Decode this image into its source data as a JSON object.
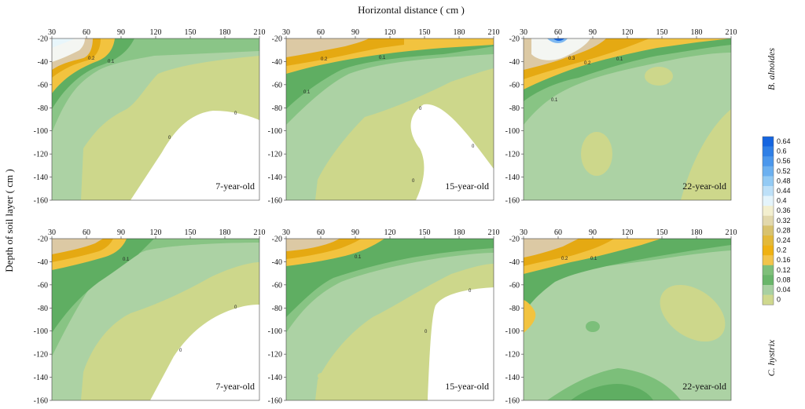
{
  "figure": {
    "x_axis_title": "Horizontal distance ( cm )",
    "y_axis_title": "Depth of soil layer ( cm )",
    "species": [
      "B. alnoides",
      "C. hystrix"
    ]
  },
  "chart_data": {
    "type": "heatmap",
    "subtype": "filled-contour",
    "x_ticks": [
      30,
      60,
      90,
      120,
      150,
      180,
      210
    ],
    "y_ticks": [
      -20,
      -40,
      -60,
      -80,
      -100,
      -120,
      -140,
      -160
    ],
    "xlim": [
      30,
      210
    ],
    "ylim": [
      -160,
      -20
    ],
    "colorbar_ticks": [
      "0.64",
      "0.6",
      "0.56",
      "0.52",
      "0.48",
      "0.44",
      "0.4",
      "0.36",
      "0.32",
      "0.28",
      "0.24",
      "0.2",
      "0.16",
      "0.12",
      "0.08",
      "0.04",
      "0"
    ],
    "colorbar_colors": [
      "#1565e0",
      "#2f7fe6",
      "#4b97ec",
      "#6cb0f0",
      "#93caf4",
      "#bde0f8",
      "#e4f4fb",
      "#f3efcf",
      "#e2d8ac",
      "#d8c26e",
      "#e3b93a",
      "#efb113",
      "#f2c44b",
      "#7fbf7a",
      "#69b56a",
      "#a8d0a2",
      "#cfd88e"
    ],
    "panels": [
      {
        "species": "B. alnoides",
        "label": "7-year-old",
        "contour_labels": [
          {
            "x": 75,
            "y": -31,
            "value": "0.2"
          },
          {
            "x": 88,
            "y": -39,
            "value": "0.1"
          },
          {
            "x": 142,
            "y": -104,
            "value": "0"
          },
          {
            "x": 192,
            "y": -84,
            "value": "0"
          }
        ]
      },
      {
        "species": "B. alnoides",
        "label": "15-year-old",
        "contour_labels": [
          {
            "x": 65,
            "y": -35,
            "value": "0.2"
          },
          {
            "x": 103,
            "y": -33,
            "value": "0.1"
          },
          {
            "x": 42,
            "y": -68,
            "value": "0.1"
          },
          {
            "x": 156,
            "y": -78,
            "value": "0"
          },
          {
            "x": 200,
            "y": -113,
            "value": "0"
          },
          {
            "x": 155,
            "y": -144,
            "value": "0"
          }
        ]
      },
      {
        "species": "B. alnoides",
        "label": "22-year-old",
        "contour_labels": [
          {
            "x": 80,
            "y": -33,
            "value": "0.3"
          },
          {
            "x": 90,
            "y": -39,
            "value": "0.2"
          },
          {
            "x": 118,
            "y": -35,
            "value": "0.1"
          },
          {
            "x": 68,
            "y": -73,
            "value": "0.1"
          }
        ]
      },
      {
        "species": "C. hystrix",
        "label": "7-year-old",
        "contour_labels": [
          {
            "x": 103,
            "y": -37,
            "value": "0.1"
          },
          {
            "x": 145,
            "y": -115,
            "value": "0"
          },
          {
            "x": 192,
            "y": -79,
            "value": "0"
          }
        ]
      },
      {
        "species": "C. hystrix",
        "label": "15-year-old",
        "contour_labels": [
          {
            "x": 90,
            "y": -34,
            "value": "0.1"
          },
          {
            "x": 197,
            "y": -64,
            "value": "0"
          },
          {
            "x": 157,
            "y": -101,
            "value": "0"
          }
        ]
      },
      {
        "species": "C. hystrix",
        "label": "22-year-old",
        "contour_labels": [
          {
            "x": 75,
            "y": -35,
            "value": "0.2"
          },
          {
            "x": 108,
            "y": -35,
            "value": "0.1"
          }
        ]
      }
    ]
  }
}
